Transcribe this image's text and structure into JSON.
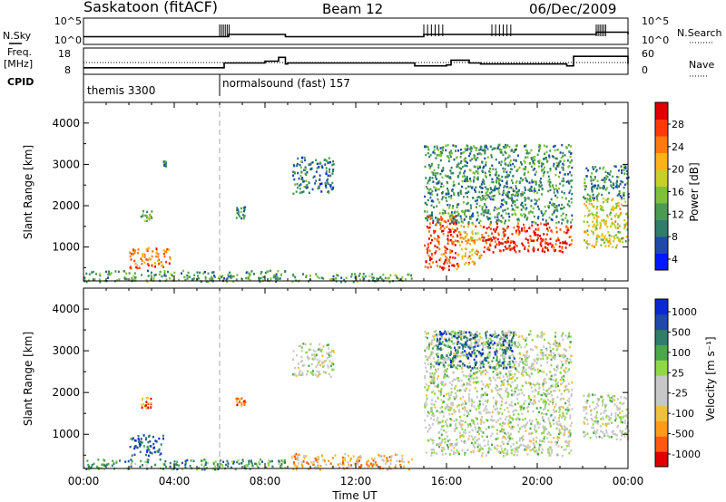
{
  "header": {
    "station": "Saskatoon (fitACF)",
    "beam": "Beam 12",
    "date": "06/Dec/2009"
  },
  "side_labels": {
    "nsky": "N.Sky",
    "freq": "Freq.",
    "mhz": "[MHz]",
    "cpid": "CPID",
    "nsearch": "N.Search",
    "nave": "Nave"
  },
  "cpid_labels": [
    "themis 3300",
    "normalsound (fast) 157"
  ],
  "colors": {
    "power_scale": [
      "#0018ff",
      "#1f4aa8",
      "#2f7d6a",
      "#4a9a52",
      "#7fc03a",
      "#c9cf2a",
      "#ffb21a",
      "#ff7a10",
      "#ff3a08",
      "#e00000"
    ],
    "velocity_scale": [
      "#e00000",
      "#ff5a10",
      "#ff9a1a",
      "#f0c040",
      "#c8c8c8",
      "#c8c8c8",
      "#8fd84a",
      "#4aa84a",
      "#2f7d6a",
      "#1f4aa8",
      "#0a2ad0"
    ]
  },
  "chart_data": [
    {
      "type": "line",
      "panel": "n-sky / n-search",
      "ylabel_left": "N.Sky",
      "ylabel_right": "N.Search",
      "ytick_labels_left": [
        "10^5",
        "10^0"
      ],
      "ytick_labels_right": [
        "10^5",
        "10^0"
      ],
      "x_hours": [
        0,
        6,
        6.4,
        8.9,
        9.1,
        15,
        16,
        21.5,
        22.6,
        24
      ],
      "n_sky_level": [
        1,
        1,
        2,
        1,
        1,
        2,
        2,
        2,
        3,
        2
      ]
    },
    {
      "type": "line",
      "panel": "frequency / nave",
      "ylabel_left": "Freq. [MHz]",
      "ylabel_right": "Nave",
      "ylim_left": [
        8,
        18
      ],
      "ytick_labels_left": [
        "18",
        "8"
      ],
      "ytick_labels_right": [
        "60",
        "0"
      ],
      "freq_mhz": {
        "x_hours": [
          0,
          6.2,
          6.2,
          8.0,
          8.6,
          8.9,
          9.0,
          14.6,
          16.0,
          16.2,
          17.0,
          17.5,
          21.3,
          21.6,
          24
        ],
        "y": [
          10.0,
          10.5,
          12.5,
          13.5,
          15.5,
          12.0,
          12.5,
          11.0,
          11.5,
          14.0,
          12.5,
          12.0,
          11.0,
          16.0,
          12.0
        ]
      }
    },
    {
      "type": "table",
      "panel": "cpid",
      "ylabel": "CPID",
      "segments": [
        {
          "start_hours": 0,
          "end_hours": 6.0,
          "label": "themis 3300"
        },
        {
          "start_hours": 6.0,
          "end_hours": 24,
          "label": "normalsound (fast) 157"
        }
      ]
    },
    {
      "type": "heatmap",
      "panel": "power",
      "ylabel": "Slant Range [km]",
      "xlim_hours": [
        0,
        24
      ],
      "ylim_km": [
        180,
        4500
      ],
      "yticks": [
        1000,
        2000,
        3000,
        4000
      ],
      "colorbar_label": "Power [dB]",
      "colorbar_ticks": [
        "4",
        "8",
        "12",
        "16",
        "20",
        "24",
        "28"
      ],
      "colorbar_range": [
        0,
        30
      ],
      "regions": [
        {
          "t0": 0.0,
          "t1": 8.9,
          "r0": 180,
          "r1": 450,
          "level": 0.35
        },
        {
          "t0": 2.0,
          "t1": 3.8,
          "r0": 500,
          "r1": 1000,
          "level": 0.75
        },
        {
          "t0": 2.5,
          "t1": 3.0,
          "r0": 1650,
          "r1": 1900,
          "level": 0.45
        },
        {
          "t0": 3.5,
          "t1": 3.6,
          "r0": 2950,
          "r1": 3100,
          "level": 0.3
        },
        {
          "t0": 6.7,
          "t1": 7.1,
          "r0": 1700,
          "r1": 2000,
          "level": 0.3
        },
        {
          "t0": 9.1,
          "t1": 14.5,
          "r0": 180,
          "r1": 380,
          "level": 0.35
        },
        {
          "t0": 9.2,
          "t1": 11.0,
          "r0": 2300,
          "r1": 3200,
          "level": 0.25
        },
        {
          "t0": 15.0,
          "t1": 16.5,
          "r0": 450,
          "r1": 1800,
          "level": 0.85
        },
        {
          "t0": 15.0,
          "t1": 21.5,
          "r0": 1600,
          "r1": 3500,
          "level": 0.3
        },
        {
          "t0": 17.5,
          "t1": 21.5,
          "r0": 900,
          "r1": 1600,
          "level": 0.9
        },
        {
          "t0": 16.5,
          "t1": 17.5,
          "r0": 600,
          "r1": 1600,
          "level": 0.65
        },
        {
          "t0": 22.0,
          "t1": 24.0,
          "r0": 1000,
          "r1": 2200,
          "level": 0.55
        },
        {
          "t0": 22.0,
          "t1": 24.0,
          "r0": 2200,
          "r1": 3000,
          "level": 0.3
        }
      ]
    },
    {
      "type": "heatmap",
      "panel": "velocity",
      "ylabel": "Slant Range [km]",
      "xlabel": "Time UT",
      "xlim_hours": [
        0,
        24
      ],
      "ylim_km": [
        180,
        4500
      ],
      "yticks": [
        1000,
        2000,
        3000,
        4000
      ],
      "xtick_labels": [
        "00:00",
        "04:00",
        "08:00",
        "12:00",
        "16:00",
        "20:00",
        "00:00"
      ],
      "colorbar_label": "Velocity [m s⁻¹]",
      "colorbar_ticks": [
        "1000",
        "500",
        "100",
        "25",
        "-25",
        "-100",
        "-500",
        "-1000"
      ],
      "colorbar_range": [
        -1000,
        1000
      ],
      "regions": [
        {
          "t0": 0.0,
          "t1": 8.9,
          "r0": 180,
          "r1": 420,
          "level": 0.7
        },
        {
          "t0": 2.0,
          "t1": 3.5,
          "r0": 500,
          "r1": 1000,
          "level": 0.85
        },
        {
          "t0": 2.5,
          "t1": 3.0,
          "r0": 1650,
          "r1": 1900,
          "level": 0.2
        },
        {
          "t0": 6.7,
          "t1": 7.1,
          "r0": 1700,
          "r1": 1900,
          "level": 0.2
        },
        {
          "t0": 9.1,
          "t1": 14.5,
          "r0": 180,
          "r1": 550,
          "level": 0.3
        },
        {
          "t0": 9.2,
          "t1": 11.0,
          "r0": 2400,
          "r1": 3200,
          "level": 0.5
        },
        {
          "t0": 15.0,
          "t1": 21.5,
          "r0": 500,
          "r1": 3500,
          "level": 0.5
        },
        {
          "t0": 15.5,
          "t1": 19.0,
          "r0": 2600,
          "r1": 3500,
          "level": 0.8
        },
        {
          "t0": 22.0,
          "t1": 24.0,
          "r0": 900,
          "r1": 2000,
          "level": 0.5
        }
      ]
    }
  ]
}
